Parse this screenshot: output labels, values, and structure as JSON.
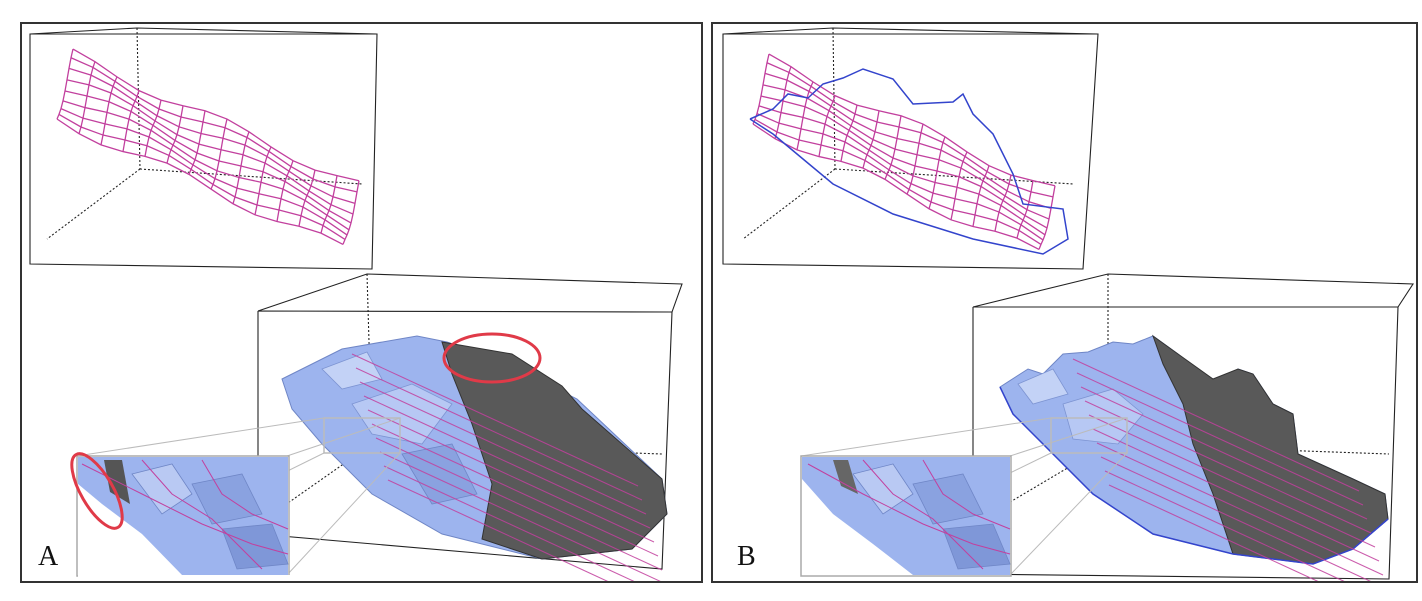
{
  "figure": {
    "panels": [
      {
        "label": "A",
        "highlights": [
          "fold-circle",
          "edge-circle"
        ]
      },
      {
        "label": "B",
        "highlights": []
      }
    ],
    "colors": {
      "grid": "#c2409e",
      "surface": "#9db4ee",
      "surface_dark": "#555555",
      "boundary": "#3344cc",
      "highlight": "#e03a48",
      "box": "#222222"
    }
  }
}
